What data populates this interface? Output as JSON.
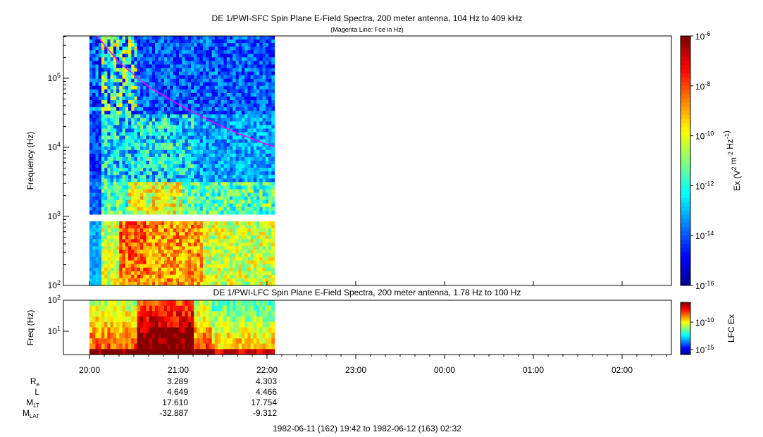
{
  "chart_data": [
    {
      "type": "heatmap",
      "title": "DE 1/PWI-SFC  Spin Plane E-Field Spectra, 200 meter antenna, 104 Hz to 409 kHz",
      "subtitle": "(Magenta Line: Fce in Hz)",
      "ylabel": "Frequency (Hz)",
      "yscale": "log",
      "ylim": [
        100,
        409000
      ],
      "yticks": [
        "10^2",
        "10^3",
        "10^4",
        "10^5"
      ],
      "colorbar": {
        "label": "Ex (V^2 m^-2 Hz^-1)",
        "scale": "log",
        "range": [
          1e-16,
          1e-06
        ],
        "ticks": [
          "10^-6",
          "10^-8",
          "10^-10",
          "10^-12",
          "10^-14",
          "10^-16"
        ]
      },
      "data_time_range": [
        "20:00",
        "22:05"
      ],
      "series": [
        {
          "name": "Fce in Hz",
          "color": "#ff00ff",
          "x": [
            "20:05",
            "20:20",
            "20:40",
            "21:00",
            "21:20",
            "21:40",
            "22:00",
            "22:05"
          ],
          "y": [
            409000,
            170000,
            75000,
            42000,
            25000,
            16000,
            11000,
            10200
          ]
        }
      ]
    },
    {
      "type": "heatmap",
      "title": "DE 1/PWI-LFC  Spin Plane E-Field Spectra, 200 meter antenna, 1.78 Hz to 100 Hz",
      "ylabel": "Freq (Hz)",
      "yscale": "log",
      "ylim": [
        1.78,
        100
      ],
      "yticks": [
        "10^1",
        "10^2"
      ],
      "colorbar": {
        "label": "LFC Ex",
        "scale": "log",
        "ticks": [
          "10^-10",
          "10^-15"
        ]
      },
      "data_time_range": [
        "20:00",
        "22:05"
      ]
    }
  ],
  "time_axis": {
    "ticks": [
      "20:00",
      "21:00",
      "22:00",
      "23:00",
      "00:00",
      "01:00",
      "02:00"
    ]
  },
  "orbit_table": {
    "rows": [
      {
        "label": "R",
        "sub": "e",
        "values": [
          "3.289",
          "4.303"
        ]
      },
      {
        "label": "L",
        "sub": "",
        "values": [
          "4.649",
          "4.466"
        ]
      },
      {
        "label": "M",
        "sub": "LT",
        "values": [
          "17.610",
          "17.754"
        ]
      },
      {
        "label": "M",
        "sub": "LAT",
        "values": [
          "-32.887",
          "-9.312"
        ]
      }
    ]
  },
  "footer": "1982-06-11 (162) 19:42 to 1982-06-12 (163) 02:32",
  "colors": {
    "fce_line": "#ff00ff",
    "background": "#ffffff"
  }
}
